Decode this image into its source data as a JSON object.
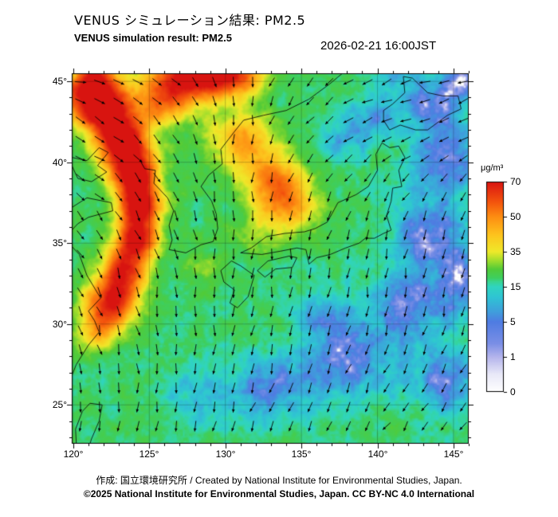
{
  "header": {
    "title_jp": "VENUS シミュレーション結果: PM2.5",
    "title_en": "VENUS simulation result: PM2.5",
    "timestamp": "2026-02-21 16:00JST"
  },
  "footer": {
    "credit": "作成: 国立環境研究所 / Created by National Institute for Environmental Studies, Japan.",
    "license": "©2025 National Institute for Environmental Studies, Japan. CC BY-NC 4.0 International"
  },
  "chart_data": {
    "type": "heatmap",
    "title": "VENUS simulation result: PM2.5",
    "variable": "PM2.5",
    "units": "μg/m³",
    "lon_range": [
      119.9,
      146.0
    ],
    "lat_range": [
      22.6,
      45.5
    ],
    "lon_ticks": [
      120,
      125,
      130,
      135,
      140,
      145
    ],
    "lat_ticks": [
      25,
      30,
      35,
      40,
      45
    ],
    "tick_suffix": "°",
    "grid": true,
    "colorbar": {
      "label": "μg/m³",
      "ticks": [
        0,
        1,
        5,
        15,
        35,
        50,
        70
      ],
      "colormap": [
        [
          0,
          "#ffffff"
        ],
        [
          0.5,
          "#e9e9f8"
        ],
        [
          1,
          "#b4b4ec"
        ],
        [
          2.5,
          "#7b8fe6"
        ],
        [
          5,
          "#4f7ce2"
        ],
        [
          8,
          "#3fa0dc"
        ],
        [
          12,
          "#2fc4d4"
        ],
        [
          15,
          "#30d5c0"
        ],
        [
          18,
          "#38d48f"
        ],
        [
          20,
          "#3ecf5f"
        ],
        [
          25,
          "#52cb38"
        ],
        [
          30,
          "#a2de2c"
        ],
        [
          35,
          "#efe92a"
        ],
        [
          42,
          "#fdc51e"
        ],
        [
          50,
          "#fd8d12"
        ],
        [
          58,
          "#f4560d"
        ],
        [
          65,
          "#e52f10"
        ],
        [
          70,
          "#d81410"
        ]
      ]
    },
    "field": {
      "base": 20,
      "blobs": [
        [
          120.6,
          45.2,
          2.2,
          1.6,
          55
        ],
        [
          122.0,
          43.3,
          1.8,
          1.5,
          58
        ],
        [
          123.2,
          41.3,
          1.6,
          1.4,
          58
        ],
        [
          124.0,
          39.3,
          1.5,
          1.4,
          55
        ],
        [
          124.4,
          37.3,
          1.4,
          1.3,
          50
        ],
        [
          124.2,
          35.3,
          1.4,
          1.3,
          46
        ],
        [
          123.4,
          33.3,
          1.5,
          1.4,
          42
        ],
        [
          122.4,
          31.3,
          1.7,
          1.5,
          46
        ],
        [
          121.6,
          29.4,
          1.4,
          1.2,
          18
        ],
        [
          127.5,
          45.3,
          2.3,
          1.5,
          52
        ],
        [
          130.5,
          45.4,
          2.0,
          1.3,
          42
        ],
        [
          125.8,
          43.5,
          1.8,
          1.4,
          28
        ],
        [
          131.0,
          41.5,
          2.2,
          1.8,
          24
        ],
        [
          133.0,
          39.0,
          2.0,
          1.8,
          28
        ],
        [
          134.4,
          37.3,
          1.8,
          1.5,
          22
        ],
        [
          132.3,
          35.8,
          1.6,
          1.4,
          10
        ],
        [
          128.5,
          33.5,
          1.5,
          1.2,
          8
        ],
        [
          119.9,
          45.4,
          1.0,
          0.9,
          -30
        ],
        [
          143.8,
          43.5,
          2.2,
          1.8,
          -16
        ],
        [
          144.5,
          40.0,
          2.2,
          2.0,
          -18
        ],
        [
          143.5,
          35.5,
          2.5,
          2.2,
          -17
        ],
        [
          142.0,
          31.0,
          2.8,
          2.2,
          -16
        ],
        [
          138.0,
          27.5,
          3.0,
          2.2,
          -16
        ],
        [
          133.0,
          26.0,
          2.8,
          2.0,
          -14
        ],
        [
          128.0,
          25.5,
          2.5,
          1.8,
          -8
        ],
        [
          139.5,
          42.5,
          1.6,
          1.4,
          -12
        ],
        [
          136.5,
          30.5,
          2.0,
          1.6,
          -12
        ],
        [
          144.5,
          26.5,
          2.5,
          2.0,
          -15
        ],
        [
          141.0,
          45.0,
          1.6,
          1.2,
          -8
        ],
        [
          145.5,
          32.5,
          1.5,
          2.0,
          -15
        ],
        [
          137.5,
          41.5,
          1.6,
          1.4,
          -10
        ],
        [
          145.8,
          45.2,
          1.5,
          1.2,
          -13
        ]
      ]
    },
    "wind": {
      "cols": 10,
      "rows": 9,
      "uv": [
        [
          [
            1.2,
            -0.3
          ],
          [
            1.3,
            -0.5
          ],
          [
            1.0,
            -0.8
          ],
          [
            0.5,
            -1.0
          ],
          [
            0.0,
            -1.0
          ],
          [
            -0.5,
            -0.9
          ],
          [
            -1.0,
            -0.6
          ],
          [
            -1.2,
            -0.4
          ],
          [
            -1.2,
            -0.3
          ],
          [
            -1.1,
            -0.3
          ]
        ],
        [
          [
            1.2,
            -0.5
          ],
          [
            1.2,
            -0.7
          ],
          [
            0.9,
            -1.0
          ],
          [
            0.4,
            -1.1
          ],
          [
            -0.1,
            -1.0
          ],
          [
            -0.6,
            -0.9
          ],
          [
            -1.0,
            -0.7
          ],
          [
            -1.1,
            -0.5
          ],
          [
            -1.1,
            -0.4
          ],
          [
            -1.0,
            -0.4
          ]
        ],
        [
          [
            1.0,
            -0.7
          ],
          [
            1.0,
            -0.9
          ],
          [
            0.7,
            -1.1
          ],
          [
            0.3,
            -1.1
          ],
          [
            -0.1,
            -1.1
          ],
          [
            -0.4,
            -1.0
          ],
          [
            -0.7,
            -0.9
          ],
          [
            -0.8,
            -0.8
          ],
          [
            -0.8,
            -0.7
          ],
          [
            -0.8,
            -0.6
          ]
        ],
        [
          [
            0.8,
            -0.9
          ],
          [
            0.8,
            -1.0
          ],
          [
            0.5,
            -1.1
          ],
          [
            0.2,
            -1.2
          ],
          [
            0.0,
            -1.2
          ],
          [
            -0.2,
            -1.1
          ],
          [
            -0.4,
            -1.0
          ],
          [
            -0.4,
            -1.0
          ],
          [
            -0.4,
            -1.0
          ],
          [
            -0.4,
            -0.9
          ]
        ],
        [
          [
            0.6,
            -1.0
          ],
          [
            0.6,
            -1.1
          ],
          [
            0.4,
            -1.2
          ],
          [
            0.1,
            -1.2
          ],
          [
            0.0,
            -1.2
          ],
          [
            -0.1,
            -1.2
          ],
          [
            -0.2,
            -1.1
          ],
          [
            -0.2,
            -1.1
          ],
          [
            -0.2,
            -1.1
          ],
          [
            -0.3,
            -1.0
          ]
        ],
        [
          [
            0.4,
            -1.1
          ],
          [
            0.4,
            -1.1
          ],
          [
            0.2,
            -1.2
          ],
          [
            0.1,
            -1.2
          ],
          [
            -0.1,
            -1.2
          ],
          [
            -0.2,
            -1.2
          ],
          [
            -0.2,
            -1.2
          ],
          [
            -0.3,
            -1.1
          ],
          [
            -0.3,
            -1.1
          ],
          [
            -0.3,
            -1.0
          ]
        ],
        [
          [
            0.2,
            -1.1
          ],
          [
            0.2,
            -1.2
          ],
          [
            0.1,
            -1.2
          ],
          [
            -0.1,
            -1.2
          ],
          [
            -0.2,
            -1.2
          ],
          [
            -0.3,
            -1.2
          ],
          [
            -0.3,
            -1.1
          ],
          [
            -0.4,
            -1.1
          ],
          [
            -0.4,
            -1.0
          ],
          [
            -0.4,
            -1.0
          ]
        ],
        [
          [
            0.0,
            -1.1
          ],
          [
            0.0,
            -1.1
          ],
          [
            -0.1,
            -1.1
          ],
          [
            -0.2,
            -1.1
          ],
          [
            -0.3,
            -1.1
          ],
          [
            -0.4,
            -1.1
          ],
          [
            -0.5,
            -1.0
          ],
          [
            -0.5,
            -1.0
          ],
          [
            -0.5,
            -0.9
          ],
          [
            -0.5,
            -0.9
          ]
        ],
        [
          [
            -0.1,
            -1.0
          ],
          [
            -0.1,
            -1.0
          ],
          [
            -0.2,
            -1.0
          ],
          [
            -0.3,
            -1.0
          ],
          [
            -0.4,
            -1.0
          ],
          [
            -0.5,
            -0.9
          ],
          [
            -0.5,
            -0.9
          ],
          [
            -0.6,
            -0.8
          ],
          [
            -0.6,
            -0.8
          ],
          [
            -0.6,
            -0.8
          ]
        ]
      ]
    },
    "coastlines": [
      [
        [
          119.9,
          40.3
        ],
        [
          120.9,
          40.1
        ],
        [
          121.7,
          40.9
        ],
        [
          122.3,
          40.6
        ],
        [
          121.6,
          39.8
        ],
        [
          122.2,
          39.4
        ],
        [
          121.2,
          38.8
        ],
        [
          120.3,
          39.0
        ],
        [
          119.9,
          39.8
        ]
      ],
      [
        [
          119.9,
          37.2
        ],
        [
          120.9,
          37.8
        ],
        [
          122.5,
          37.5
        ],
        [
          122.6,
          37.0
        ],
        [
          121.0,
          36.6
        ],
        [
          120.3,
          36.2
        ],
        [
          119.9,
          35.8
        ]
      ],
      [
        [
          119.9,
          34.8
        ],
        [
          120.4,
          34.3
        ],
        [
          120.9,
          33.0
        ],
        [
          121.8,
          31.6
        ],
        [
          121.0,
          30.8
        ],
        [
          121.4,
          30.2
        ],
        [
          121.7,
          29.5
        ],
        [
          121.0,
          28.7
        ],
        [
          120.2,
          27.5
        ],
        [
          119.9,
          26.8
        ]
      ],
      [
        [
          124.4,
          40.1
        ],
        [
          124.7,
          39.6
        ],
        [
          125.4,
          39.5
        ],
        [
          125.3,
          38.7
        ],
        [
          126.2,
          37.8
        ],
        [
          126.6,
          37.0
        ],
        [
          126.3,
          36.1
        ],
        [
          126.5,
          35.2
        ],
        [
          126.3,
          34.6
        ],
        [
          127.4,
          34.4
        ],
        [
          128.4,
          34.9
        ],
        [
          129.2,
          35.1
        ],
        [
          129.5,
          35.9
        ],
        [
          129.4,
          36.8
        ],
        [
          129.1,
          37.6
        ],
        [
          128.4,
          38.5
        ],
        [
          128.9,
          39.2
        ],
        [
          129.8,
          39.9
        ],
        [
          129.7,
          40.8
        ],
        [
          130.6,
          41.9
        ],
        [
          131.2,
          42.6
        ],
        [
          132.5,
          42.9
        ],
        [
          134.0,
          43.2
        ],
        [
          135.5,
          43.9
        ],
        [
          136.8,
          44.8
        ],
        [
          137.7,
          45.5
        ]
      ],
      [
        [
          129.7,
          33.3
        ],
        [
          130.4,
          33.9
        ],
        [
          131.0,
          33.6
        ],
        [
          131.9,
          33.0
        ],
        [
          131.5,
          31.7
        ],
        [
          130.8,
          31.0
        ],
        [
          130.3,
          31.3
        ],
        [
          130.6,
          32.1
        ],
        [
          129.9,
          32.6
        ],
        [
          129.7,
          33.3
        ]
      ],
      [
        [
          132.1,
          33.3
        ],
        [
          132.8,
          33.9
        ],
        [
          134.2,
          34.2
        ],
        [
          134.7,
          34.1
        ],
        [
          134.4,
          33.5
        ],
        [
          133.3,
          33.4
        ],
        [
          132.6,
          32.9
        ],
        [
          132.1,
          33.3
        ]
      ],
      [
        [
          131.0,
          34.4
        ],
        [
          132.4,
          34.3
        ],
        [
          133.6,
          34.5
        ],
        [
          134.7,
          34.7
        ],
        [
          135.3,
          34.6
        ],
        [
          135.5,
          33.7
        ],
        [
          136.0,
          34.1
        ],
        [
          136.9,
          34.3
        ],
        [
          137.9,
          34.7
        ],
        [
          138.8,
          35.0
        ],
        [
          139.2,
          35.3
        ],
        [
          139.8,
          35.3
        ],
        [
          140.4,
          35.6
        ],
        [
          140.9,
          35.8
        ],
        [
          140.6,
          36.7
        ],
        [
          140.9,
          37.6
        ],
        [
          141.0,
          38.4
        ],
        [
          141.6,
          38.5
        ],
        [
          141.4,
          39.5
        ],
        [
          141.8,
          40.3
        ],
        [
          141.4,
          41.0
        ],
        [
          140.8,
          40.9
        ],
        [
          140.3,
          41.2
        ],
        [
          139.9,
          40.5
        ],
        [
          140.0,
          39.5
        ],
        [
          139.4,
          38.5
        ],
        [
          138.6,
          38.0
        ],
        [
          137.4,
          37.5
        ],
        [
          137.0,
          36.8
        ],
        [
          136.7,
          36.3
        ],
        [
          135.9,
          35.9
        ],
        [
          135.2,
          35.7
        ],
        [
          133.9,
          35.6
        ],
        [
          132.7,
          35.4
        ],
        [
          131.7,
          34.7
        ],
        [
          131.0,
          34.4
        ]
      ],
      [
        [
          140.4,
          42.6
        ],
        [
          140.8,
          42.0
        ],
        [
          141.5,
          42.3
        ],
        [
          142.5,
          42.0
        ],
        [
          143.3,
          42.0
        ],
        [
          144.6,
          42.9
        ],
        [
          145.5,
          43.3
        ],
        [
          145.3,
          44.1
        ],
        [
          144.3,
          44.1
        ],
        [
          143.3,
          44.3
        ],
        [
          142.3,
          45.2
        ],
        [
          141.7,
          45.3
        ],
        [
          141.8,
          44.3
        ],
        [
          141.0,
          43.6
        ],
        [
          140.4,
          43.2
        ],
        [
          140.4,
          42.6
        ]
      ],
      [
        [
          120.2,
          22.6
        ],
        [
          120.15,
          23.5
        ],
        [
          120.6,
          24.6
        ],
        [
          121.1,
          25.1
        ],
        [
          121.9,
          25.0
        ],
        [
          121.7,
          24.0
        ],
        [
          121.2,
          22.9
        ],
        [
          121.1,
          22.6
        ]
      ]
    ]
  }
}
